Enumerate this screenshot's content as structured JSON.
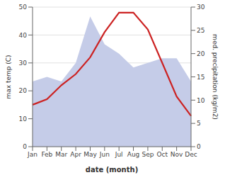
{
  "chart_data": {
    "type": "line",
    "categories": [
      "Jan",
      "Feb",
      "Mar",
      "Apr",
      "May",
      "Jun",
      "Jul",
      "Aug",
      "Sep",
      "Oct",
      "Nov",
      "Dec"
    ],
    "series": [
      {
        "type": "area",
        "color": "#c5cce8",
        "axis": "y2",
        "values": [
          14,
          15,
          14,
          18,
          28,
          22,
          20,
          17,
          18,
          19,
          19,
          14
        ]
      },
      {
        "type": "line",
        "color": "#cc2222",
        "values": [
          15,
          17,
          22,
          26,
          32,
          41,
          48,
          48,
          42,
          30,
          18,
          11
        ]
      }
    ],
    "xlabel": "date (month)",
    "ylabel": "max temp (C)",
    "y2label": "med. precipitation (kg/m2)",
    "ylim": [
      0,
      50
    ],
    "yticks": [
      0,
      10,
      20,
      30,
      40,
      50
    ],
    "y2lim": [
      0,
      30
    ],
    "y2ticks": [
      0,
      5,
      10,
      15,
      20,
      25,
      30
    ],
    "grid": true
  }
}
